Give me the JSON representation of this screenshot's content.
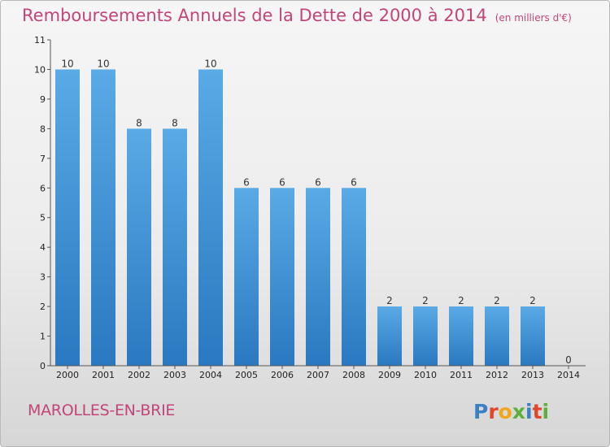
{
  "title": "Remboursements Annuels de la Dette de 2000 à 2014",
  "unit": "(en milliers d'€)",
  "location": "MAROLLES-EN-BRIE",
  "brand": "Proxiti",
  "colors": {
    "title": "#c2457a",
    "bar_top": "#5aaae6",
    "bar_bottom": "#2a78c0"
  },
  "chart_data": {
    "type": "bar",
    "title": "Remboursements Annuels de la Dette de 2000 à 2014",
    "subtitle": "(en milliers d'€)",
    "xlabel": "",
    "ylabel": "",
    "categories": [
      "2000",
      "2001",
      "2002",
      "2003",
      "2004",
      "2005",
      "2006",
      "2007",
      "2008",
      "2009",
      "2010",
      "2011",
      "2012",
      "2013",
      "2014"
    ],
    "values": [
      10,
      10,
      8,
      8,
      10,
      6,
      6,
      6,
      6,
      2,
      2,
      2,
      2,
      2,
      0
    ],
    "ylim": [
      0,
      11
    ],
    "yticks": [
      0,
      1,
      2,
      3,
      4,
      5,
      6,
      7,
      8,
      9,
      10,
      11
    ],
    "grid": false,
    "legend": "none"
  }
}
